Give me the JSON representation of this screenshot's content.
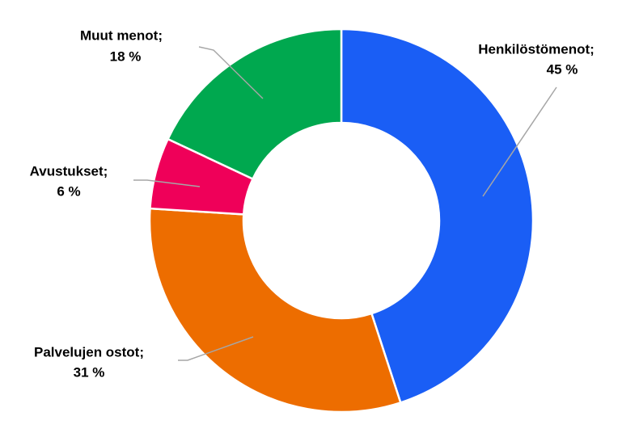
{
  "chart_data": {
    "type": "donut",
    "categories": [
      "Henkilöstömenot;",
      "Palvelujen ostot;",
      "Avustukset;",
      "Muut menot;"
    ],
    "values": [
      45,
      31,
      6,
      18
    ],
    "value_labels": [
      "45 %",
      "31 %",
      "6 %",
      "18 %"
    ],
    "colors": [
      "#1a5ef5",
      "#ed6d00",
      "#ef0059",
      "#00a84f"
    ]
  }
}
